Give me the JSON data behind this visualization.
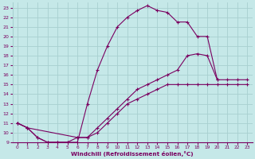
{
  "xlabel": "Windchill (Refroidissement éolien,°C)",
  "xlim": [
    -0.5,
    23.5
  ],
  "ylim": [
    9,
    23.5
  ],
  "xticks": [
    0,
    1,
    2,
    3,
    4,
    5,
    6,
    7,
    8,
    9,
    10,
    11,
    12,
    13,
    14,
    15,
    16,
    17,
    18,
    19,
    20,
    21,
    22,
    23
  ],
  "yticks": [
    9,
    10,
    11,
    12,
    13,
    14,
    15,
    16,
    17,
    18,
    19,
    20,
    21,
    22,
    23
  ],
  "bg_color": "#c5e8e8",
  "grid_color": "#a8d0d0",
  "line_color": "#7a0060",
  "curve1_x": [
    0,
    1,
    2,
    3,
    4,
    5,
    6,
    7,
    8,
    9,
    10,
    11,
    12,
    13,
    14,
    15,
    16,
    17,
    18,
    19,
    20
  ],
  "curve1_y": [
    11,
    10.5,
    9.5,
    9,
    9,
    9,
    9,
    13,
    16.5,
    19,
    21,
    22,
    22.7,
    23.2,
    22.7,
    22.5,
    21.5,
    21.5,
    20,
    20,
    15.5
  ],
  "curve2_x": [
    0,
    1,
    2,
    3,
    4,
    5,
    6,
    7,
    8,
    9,
    10,
    11,
    12,
    13,
    14,
    15,
    16,
    17,
    18,
    19,
    20,
    21,
    22,
    23
  ],
  "curve2_y": [
    11,
    10.5,
    9.5,
    9,
    9,
    9,
    9.5,
    9.5,
    10.5,
    11.5,
    12.5,
    13.5,
    14.5,
    15,
    15.5,
    16,
    16.5,
    18,
    18.2,
    18,
    15.5,
    15.5,
    15.5,
    15.5
  ],
  "curve3_x": [
    0,
    1,
    6,
    7,
    8,
    9,
    10,
    11,
    12,
    13,
    14,
    15,
    16,
    17,
    18,
    19,
    20,
    21,
    22,
    23
  ],
  "curve3_y": [
    11,
    10.5,
    9.5,
    9.5,
    10,
    11,
    12,
    13,
    13.5,
    14,
    14.5,
    15,
    15,
    15,
    15,
    15,
    15,
    15,
    15,
    15
  ]
}
